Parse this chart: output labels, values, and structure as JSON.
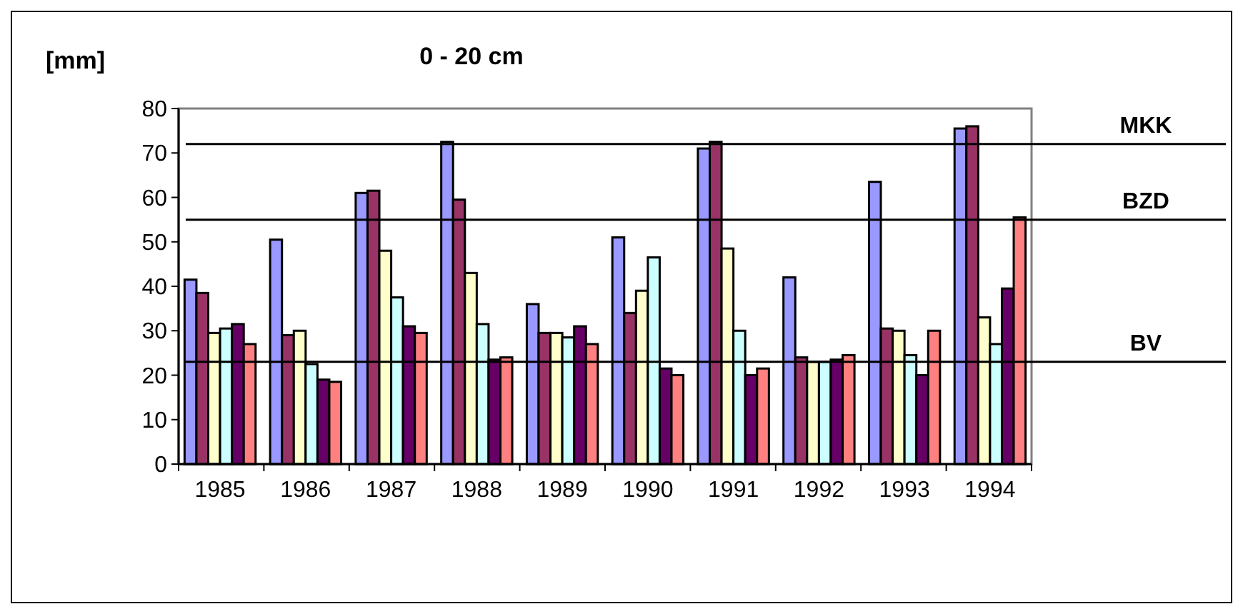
{
  "chart_data": {
    "type": "bar",
    "title": "0 - 20 cm",
    "ylabel": "[mm]",
    "categories": [
      "1985",
      "1986",
      "1987",
      "1988",
      "1989",
      "1990",
      "1991",
      "1992",
      "1993",
      "1994"
    ],
    "series": [
      {
        "color": "#9999ff",
        "values": [
          41.5,
          50.5,
          61,
          72.5,
          36,
          51,
          71,
          42,
          63.5,
          75.5
        ]
      },
      {
        "color": "#993366",
        "values": [
          38.5,
          29,
          61.5,
          59.5,
          29.5,
          34,
          72.5,
          24,
          30.5,
          76
        ]
      },
      {
        "color": "#ffffcc",
        "values": [
          29.5,
          30,
          48,
          43,
          29.5,
          39,
          48.5,
          23,
          30,
          33
        ]
      },
      {
        "color": "#ccffff",
        "values": [
          30.5,
          22.5,
          37.5,
          31.5,
          28.5,
          46.5,
          30,
          23,
          24.5,
          27
        ]
      },
      {
        "color": "#660066",
        "values": [
          31.5,
          19,
          31,
          23.5,
          31,
          21.5,
          20,
          23.5,
          20,
          39.5
        ]
      },
      {
        "color": "#ff8080",
        "values": [
          27,
          18.5,
          29.5,
          24,
          27,
          20,
          21.5,
          24.5,
          30,
          55.5
        ]
      }
    ],
    "ylim": [
      0,
      80
    ],
    "yticks": [
      0,
      10,
      20,
      30,
      40,
      50,
      60,
      70,
      80
    ],
    "grid": false,
    "ref_lines": [
      {
        "axis": "y",
        "value": 72,
        "label": "MKK",
        "color": "#000000"
      },
      {
        "axis": "y",
        "value": 55,
        "label": "BZD",
        "color": "#000000"
      },
      {
        "axis": "y",
        "value": 23,
        "label": "BV",
        "color": "#000000"
      }
    ]
  }
}
